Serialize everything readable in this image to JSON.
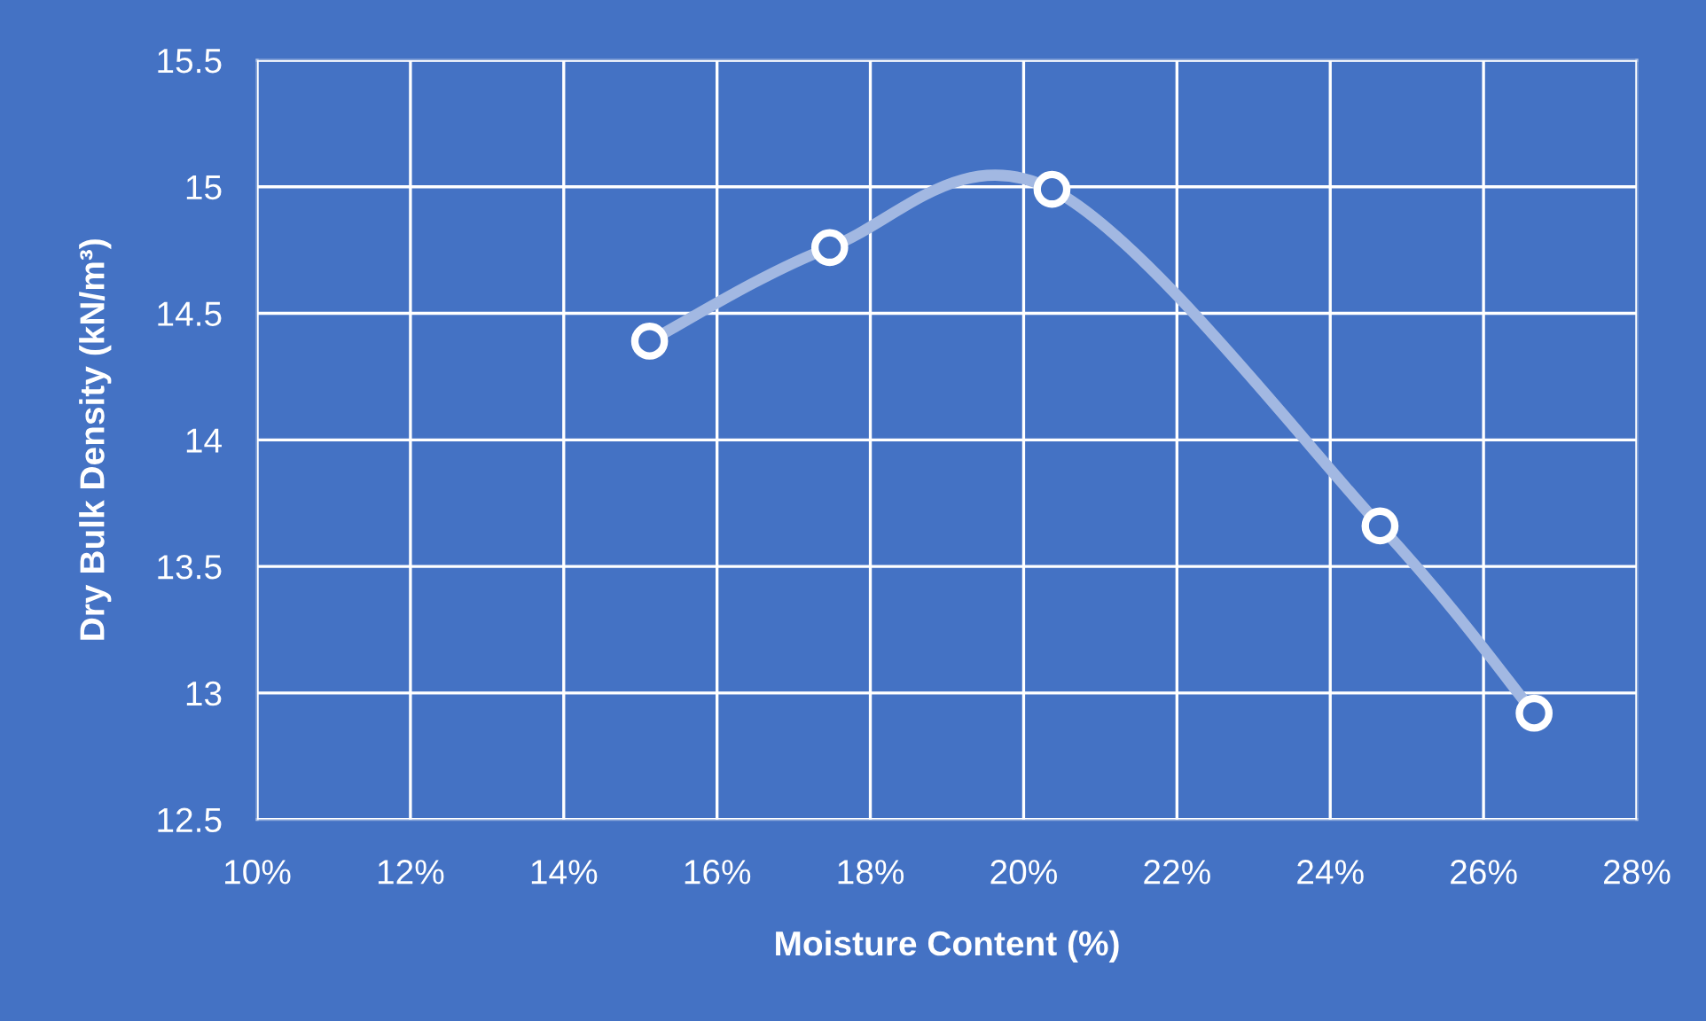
{
  "chart_data": {
    "type": "line",
    "xlabel": "Moisture Content (%)",
    "ylabel": "Dry Bulk Density (kN/m³)",
    "x": [
      15.12,
      17.47,
      20.37,
      24.65,
      26.66
    ],
    "series": [
      {
        "color": "#a2b8e2",
        "values": [
          14.39,
          14.76,
          14.99,
          13.66,
          12.92
        ]
      }
    ],
    "xlim": [
      10,
      28
    ],
    "xticks": [
      {
        "value": 10,
        "label": "10%"
      },
      {
        "value": 12,
        "label": "12%"
      },
      {
        "value": 14,
        "label": "14%"
      },
      {
        "value": 16,
        "label": "16%"
      },
      {
        "value": 18,
        "label": "18%"
      },
      {
        "value": 20,
        "label": "20%"
      },
      {
        "value": 22,
        "label": "22%"
      },
      {
        "value": 24,
        "label": "24%"
      },
      {
        "value": 26,
        "label": "26%"
      },
      {
        "value": 28,
        "label": "28%"
      }
    ],
    "ylim": [
      12.5,
      15.5
    ],
    "yticks": [
      12.5,
      13,
      13.5,
      14,
      14.5,
      15,
      15.5
    ],
    "grid": true,
    "marker": "circle"
  }
}
